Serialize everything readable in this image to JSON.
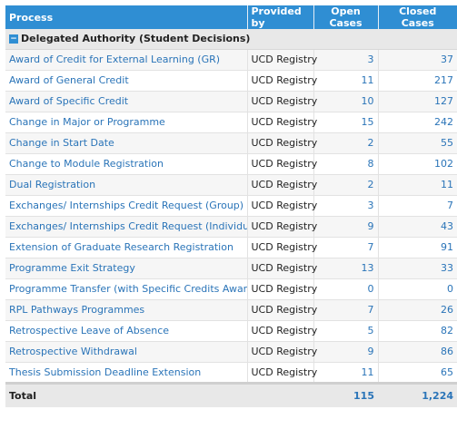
{
  "header": {
    "process": "Process",
    "provided_by": "Provided by",
    "open_cases": "Open Cases",
    "closed_cases": "Closed Cases"
  },
  "group": {
    "toggle_icon": "minus-icon",
    "label": "Delegated Authority (Student Decisions)"
  },
  "rows": [
    {
      "process": "Award of Credit for External Learning (GR)",
      "provider": "UCD Registry",
      "open": "3",
      "closed": "37"
    },
    {
      "process": "Award of General Credit",
      "provider": "UCD Registry",
      "open": "11",
      "closed": "217"
    },
    {
      "process": "Award of Specific Credit",
      "provider": "UCD Registry",
      "open": "10",
      "closed": "127"
    },
    {
      "process": "Change in Major or Programme",
      "provider": "UCD Registry",
      "open": "15",
      "closed": "242"
    },
    {
      "process": "Change in Start Date",
      "provider": "UCD Registry",
      "open": "2",
      "closed": "55"
    },
    {
      "process": "Change to Module Registration",
      "provider": "UCD Registry",
      "open": "8",
      "closed": "102"
    },
    {
      "process": "Dual Registration",
      "provider": "UCD Registry",
      "open": "2",
      "closed": "11"
    },
    {
      "process": "Exchanges/ Internships Credit Request (Group)",
      "provider": "UCD Registry",
      "open": "3",
      "closed": "7"
    },
    {
      "process": "Exchanges/ Internships Credit Request (Individual)",
      "provider": "UCD Registry",
      "open": "9",
      "closed": "43"
    },
    {
      "process": "Extension of Graduate Research Registration",
      "provider": "UCD Registry",
      "open": "7",
      "closed": "91"
    },
    {
      "process": "Programme Exit Strategy",
      "provider": "UCD Registry",
      "open": "13",
      "closed": "33"
    },
    {
      "process": "Programme Transfer (with Specific Credits Awarded)",
      "provider": "UCD Registry",
      "open": "0",
      "closed": "0"
    },
    {
      "process": "RPL Pathways Programmes",
      "provider": "UCD Registry",
      "open": "7",
      "closed": "26"
    },
    {
      "process": "Retrospective Leave of Absence",
      "provider": "UCD Registry",
      "open": "5",
      "closed": "82"
    },
    {
      "process": "Retrospective Withdrawal",
      "provider": "UCD Registry",
      "open": "9",
      "closed": "86"
    },
    {
      "process": "Thesis Submission Deadline Extension",
      "provider": "UCD Registry",
      "open": "11",
      "closed": "65"
    }
  ],
  "total": {
    "label": "Total",
    "open": "115",
    "closed": "1,224"
  },
  "colors": {
    "header_bg": "#2f8ed3",
    "link": "#2a74b8",
    "group_bg": "#e8e8e8"
  }
}
